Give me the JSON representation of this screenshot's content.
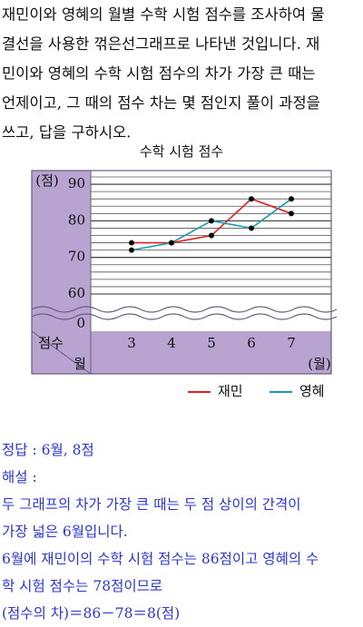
{
  "problem": [
    "재민이와 영혜의 월별 수학 시험 점수를 조사하여 물",
    "결선을 사용한 꺾은선그래프로 나타낸 것입니다. 재",
    "민이와 영혜의 수학 시험 점수의 차가 가장 큰 때는",
    "언제이고, 그 때의 점수 차는 몇 점인지 풀이 과정을",
    "쓰고, 답을 구하시오."
  ],
  "chart_data": {
    "type": "line",
    "title": "수학 시험 점수",
    "y_unit": "(점)",
    "row_label": "점수",
    "x_label": "월",
    "x_unit": "(월)",
    "categories": [
      "3",
      "4",
      "5",
      "6",
      "7"
    ],
    "series": [
      {
        "name": "재민",
        "color": "#e0201c",
        "values": [
          74,
          74,
          76,
          86,
          82
        ]
      },
      {
        "name": "영혜",
        "color": "#1a9bb0",
        "values": [
          72,
          74,
          80,
          78,
          86
        ]
      }
    ],
    "ylim": [
      60,
      92
    ],
    "yticks": [
      60,
      70,
      80,
      90
    ],
    "break_tick": 0,
    "grid": true,
    "grid_step": 2,
    "legend": "bottom-right"
  },
  "answer": {
    "label": "정답 : 6월, 8점",
    "explain_title": "해설 :",
    "lines": [
      "두 그래프의 차가 가장 큰 때는 두 점 상이의 간격이",
      "가장 넓은 6월입니다.",
      "6월에 재민이의 수학 시험 점수는 86점이고 영혜의 수",
      "학 시험 점수는 78점이므로",
      "(점수의 차)＝86－78＝8(점)"
    ]
  }
}
